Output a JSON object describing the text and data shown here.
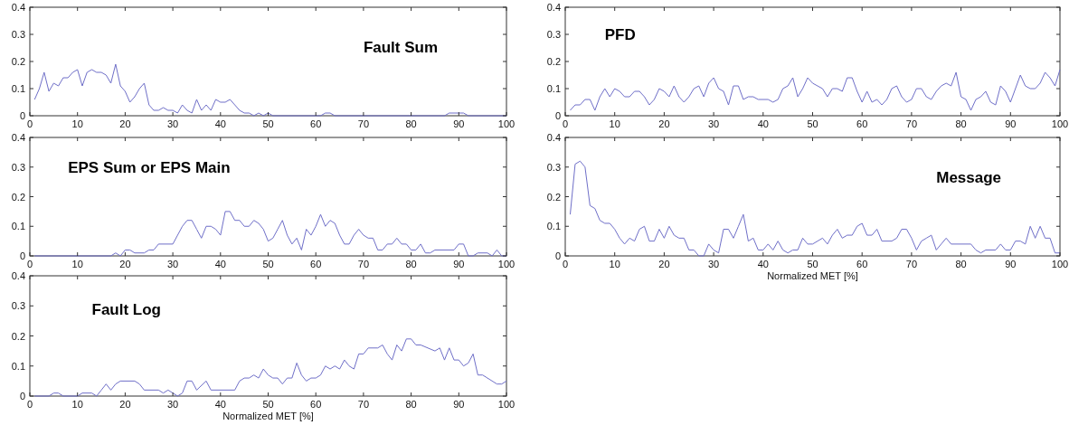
{
  "chart_data": [
    {
      "type": "line",
      "title": "Fault Sum",
      "color": "#6f6fc8",
      "xlim": [
        0,
        100
      ],
      "xticks": [
        0,
        10,
        20,
        30,
        40,
        50,
        60,
        70,
        80,
        90,
        100
      ],
      "ylim": [
        0,
        0.4
      ],
      "yticks": [
        0,
        0.1,
        0.2,
        0.3,
        0.4
      ],
      "x": [
        1,
        2,
        3,
        4,
        5,
        6,
        7,
        8,
        9,
        10,
        11,
        12,
        13,
        14,
        15,
        16,
        17,
        18,
        19,
        20,
        21,
        22,
        23,
        24,
        25,
        26,
        27,
        28,
        29,
        30,
        31,
        32,
        33,
        34,
        35,
        36,
        37,
        38,
        39,
        40,
        41,
        42,
        43,
        44,
        45,
        46,
        47,
        48,
        49,
        50,
        51,
        60,
        61,
        62,
        63,
        64,
        87,
        88,
        89,
        90,
        91,
        92,
        100
      ],
      "values": [
        0.06,
        0.1,
        0.16,
        0.09,
        0.12,
        0.11,
        0.14,
        0.14,
        0.16,
        0.17,
        0.11,
        0.16,
        0.17,
        0.16,
        0.16,
        0.15,
        0.12,
        0.19,
        0.11,
        0.09,
        0.05,
        0.07,
        0.1,
        0.12,
        0.04,
        0.02,
        0.02,
        0.03,
        0.02,
        0.02,
        0.01,
        0.04,
        0.02,
        0.01,
        0.06,
        0.02,
        0.04,
        0.02,
        0.06,
        0.05,
        0.05,
        0.06,
        0.04,
        0.02,
        0.01,
        0.01,
        0,
        0.01,
        0,
        0.01,
        0,
        0,
        0,
        0.01,
        0.01,
        0,
        0,
        0.01,
        0.01,
        0.01,
        0.01,
        0,
        0
      ]
    },
    {
      "type": "line",
      "title": "PFD",
      "color": "#6f6fc8",
      "xlim": [
        0,
        100
      ],
      "xticks": [
        0,
        10,
        20,
        30,
        40,
        50,
        60,
        70,
        80,
        90,
        100
      ],
      "ylim": [
        0,
        0.4
      ],
      "yticks": [
        0,
        0.1,
        0.2,
        0.3,
        0.4
      ],
      "x": [
        1,
        2,
        3,
        4,
        5,
        6,
        7,
        8,
        9,
        10,
        11,
        12,
        13,
        14,
        15,
        16,
        17,
        18,
        19,
        20,
        21,
        22,
        23,
        24,
        25,
        26,
        27,
        28,
        29,
        30,
        31,
        32,
        33,
        34,
        35,
        36,
        37,
        38,
        39,
        41,
        42,
        43,
        44,
        45,
        46,
        47,
        48,
        49,
        50,
        51,
        52,
        53,
        54,
        55,
        56,
        57,
        58,
        59,
        60,
        61,
        62,
        63,
        64,
        65,
        66,
        67,
        68,
        69,
        70,
        71,
        72,
        73,
        74,
        75,
        76,
        77,
        78,
        79,
        80,
        81,
        82,
        83,
        84,
        85,
        86,
        87,
        88,
        89,
        90,
        91,
        92,
        93,
        94,
        95,
        96,
        97,
        98,
        99,
        100
      ],
      "values": [
        0.02,
        0.04,
        0.04,
        0.06,
        0.06,
        0.02,
        0.07,
        0.1,
        0.07,
        0.1,
        0.09,
        0.07,
        0.07,
        0.09,
        0.09,
        0.07,
        0.04,
        0.06,
        0.1,
        0.09,
        0.07,
        0.11,
        0.07,
        0.05,
        0.07,
        0.1,
        0.11,
        0.07,
        0.12,
        0.14,
        0.1,
        0.09,
        0.04,
        0.11,
        0.11,
        0.06,
        0.07,
        0.07,
        0.06,
        0.06,
        0.05,
        0.06,
        0.1,
        0.11,
        0.14,
        0.07,
        0.1,
        0.14,
        0.12,
        0.11,
        0.1,
        0.07,
        0.1,
        0.1,
        0.09,
        0.14,
        0.14,
        0.09,
        0.05,
        0.09,
        0.05,
        0.06,
        0.04,
        0.06,
        0.1,
        0.11,
        0.07,
        0.05,
        0.06,
        0.1,
        0.1,
        0.07,
        0.06,
        0.09,
        0.11,
        0.12,
        0.11,
        0.16,
        0.07,
        0.06,
        0.02,
        0.06,
        0.07,
        0.09,
        0.05,
        0.04,
        0.11,
        0.09,
        0.05,
        0.1,
        0.15,
        0.11,
        0.1,
        0.1,
        0.12,
        0.16,
        0.14,
        0.11,
        0.17
      ]
    },
    {
      "type": "line",
      "title": "EPS Sum or EPS Main",
      "color": "#6f6fc8",
      "xlim": [
        0,
        100
      ],
      "xticks": [
        0,
        10,
        20,
        30,
        40,
        50,
        60,
        70,
        80,
        90,
        100
      ],
      "ylim": [
        0,
        0.4
      ],
      "yticks": [
        0,
        0.1,
        0.2,
        0.3,
        0.4
      ],
      "x": [
        1,
        17,
        18,
        19,
        20,
        21,
        22,
        24,
        25,
        26,
        27,
        30,
        31,
        32,
        33,
        34,
        35,
        36,
        37,
        38,
        39,
        40,
        41,
        42,
        43,
        44,
        45,
        46,
        47,
        48,
        49,
        50,
        51,
        52,
        53,
        54,
        55,
        56,
        57,
        58,
        59,
        60,
        61,
        62,
        63,
        64,
        65,
        66,
        67,
        68,
        69,
        70,
        71,
        72,
        73,
        74,
        75,
        76,
        77,
        78,
        79,
        80,
        81,
        82,
        83,
        84,
        85,
        89,
        90,
        91,
        92,
        93,
        94,
        96,
        97,
        98,
        99,
        100
      ],
      "values": [
        0,
        0,
        0.01,
        0,
        0.02,
        0.02,
        0.01,
        0.01,
        0.02,
        0.02,
        0.04,
        0.04,
        0.07,
        0.1,
        0.12,
        0.12,
        0.09,
        0.06,
        0.1,
        0.1,
        0.09,
        0.07,
        0.15,
        0.15,
        0.12,
        0.12,
        0.1,
        0.1,
        0.12,
        0.11,
        0.09,
        0.05,
        0.06,
        0.09,
        0.12,
        0.07,
        0.04,
        0.06,
        0.02,
        0.09,
        0.07,
        0.1,
        0.14,
        0.1,
        0.12,
        0.11,
        0.07,
        0.04,
        0.04,
        0.07,
        0.09,
        0.07,
        0.06,
        0.06,
        0.02,
        0.02,
        0.04,
        0.04,
        0.06,
        0.04,
        0.04,
        0.02,
        0.02,
        0.04,
        0.01,
        0.01,
        0.02,
        0.02,
        0.04,
        0.04,
        0,
        0,
        0.01,
        0.01,
        0,
        0.02,
        0,
        0
      ]
    },
    {
      "type": "line",
      "title": "Message",
      "xlabel": "Normalized MET [%]",
      "color": "#6f6fc8",
      "xlim": [
        0,
        100
      ],
      "xticks": [
        0,
        10,
        20,
        30,
        40,
        50,
        60,
        70,
        80,
        90,
        100
      ],
      "ylim": [
        0,
        0.4
      ],
      "yticks": [
        0,
        0.1,
        0.2,
        0.3,
        0.4
      ],
      "x": [
        1,
        2,
        3,
        4,
        5,
        6,
        7,
        8,
        9,
        10,
        11,
        12,
        13,
        14,
        15,
        16,
        17,
        18,
        19,
        20,
        21,
        22,
        23,
        24,
        25,
        26,
        27,
        28,
        29,
        30,
        31,
        32,
        33,
        34,
        35,
        36,
        37,
        38,
        39,
        40,
        41,
        42,
        43,
        44,
        45,
        46,
        47,
        48,
        49,
        50,
        51,
        52,
        53,
        54,
        55,
        56,
        57,
        58,
        59,
        60,
        61,
        62,
        63,
        64,
        66,
        67,
        68,
        69,
        70,
        71,
        72,
        73,
        74,
        75,
        76,
        77,
        78,
        82,
        83,
        84,
        85,
        87,
        88,
        89,
        90,
        91,
        92,
        93,
        94,
        95,
        96,
        97,
        98,
        99,
        100
      ],
      "values": [
        0.14,
        0.31,
        0.32,
        0.3,
        0.17,
        0.16,
        0.12,
        0.11,
        0.11,
        0.09,
        0.06,
        0.04,
        0.06,
        0.05,
        0.09,
        0.1,
        0.05,
        0.05,
        0.09,
        0.06,
        0.1,
        0.07,
        0.06,
        0.06,
        0.02,
        0.02,
        0,
        0,
        0.04,
        0.02,
        0.01,
        0.09,
        0.09,
        0.06,
        0.1,
        0.14,
        0.05,
        0.06,
        0.02,
        0.02,
        0.04,
        0.02,
        0.05,
        0.02,
        0.01,
        0.02,
        0.02,
        0.06,
        0.04,
        0.04,
        0.05,
        0.06,
        0.04,
        0.07,
        0.09,
        0.06,
        0.07,
        0.07,
        0.1,
        0.11,
        0.07,
        0.07,
        0.09,
        0.05,
        0.05,
        0.06,
        0.09,
        0.09,
        0.06,
        0.02,
        0.05,
        0.06,
        0.07,
        0.02,
        0.04,
        0.06,
        0.04,
        0.04,
        0.02,
        0.01,
        0.02,
        0.02,
        0.04,
        0.02,
        0.02,
        0.05,
        0.05,
        0.04,
        0.1,
        0.06,
        0.1,
        0.06,
        0.06,
        0.01,
        0.01
      ]
    },
    {
      "type": "line",
      "title": "Fault Log",
      "xlabel": "Normalized MET [%]",
      "color": "#6f6fc8",
      "xlim": [
        0,
        100
      ],
      "xticks": [
        0,
        10,
        20,
        30,
        40,
        50,
        60,
        70,
        80,
        90,
        100
      ],
      "ylim": [
        0,
        0.4
      ],
      "yticks": [
        0,
        0.1,
        0.2,
        0.3,
        0.4
      ],
      "x": [
        1,
        4,
        5,
        6,
        7,
        10,
        11,
        13,
        14,
        15,
        16,
        17,
        18,
        19,
        22,
        23,
        24,
        27,
        28,
        29,
        30,
        31,
        32,
        33,
        34,
        35,
        37,
        38,
        43,
        44,
        45,
        46,
        47,
        48,
        49,
        50,
        51,
        52,
        53,
        54,
        55,
        56,
        57,
        58,
        59,
        60,
        61,
        62,
        63,
        64,
        65,
        66,
        67,
        68,
        69,
        70,
        71,
        73,
        74,
        75,
        76,
        77,
        78,
        79,
        80,
        81,
        82,
        85,
        86,
        87,
        88,
        89,
        90,
        91,
        92,
        93,
        94,
        95,
        98,
        99,
        100
      ],
      "values": [
        0,
        0,
        0.01,
        0.01,
        0,
        0,
        0.01,
        0.01,
        0,
        0.02,
        0.04,
        0.02,
        0.04,
        0.05,
        0.05,
        0.04,
        0.02,
        0.02,
        0.01,
        0.02,
        0.01,
        0,
        0.01,
        0.05,
        0.05,
        0.02,
        0.05,
        0.02,
        0.02,
        0.05,
        0.06,
        0.06,
        0.07,
        0.06,
        0.09,
        0.07,
        0.06,
        0.06,
        0.04,
        0.06,
        0.06,
        0.11,
        0.07,
        0.05,
        0.06,
        0.06,
        0.07,
        0.1,
        0.09,
        0.1,
        0.09,
        0.12,
        0.1,
        0.09,
        0.14,
        0.14,
        0.16,
        0.16,
        0.17,
        0.14,
        0.12,
        0.17,
        0.15,
        0.19,
        0.19,
        0.17,
        0.17,
        0.15,
        0.16,
        0.12,
        0.16,
        0.12,
        0.12,
        0.1,
        0.11,
        0.14,
        0.07,
        0.07,
        0.04,
        0.04,
        0.05
      ]
    }
  ]
}
